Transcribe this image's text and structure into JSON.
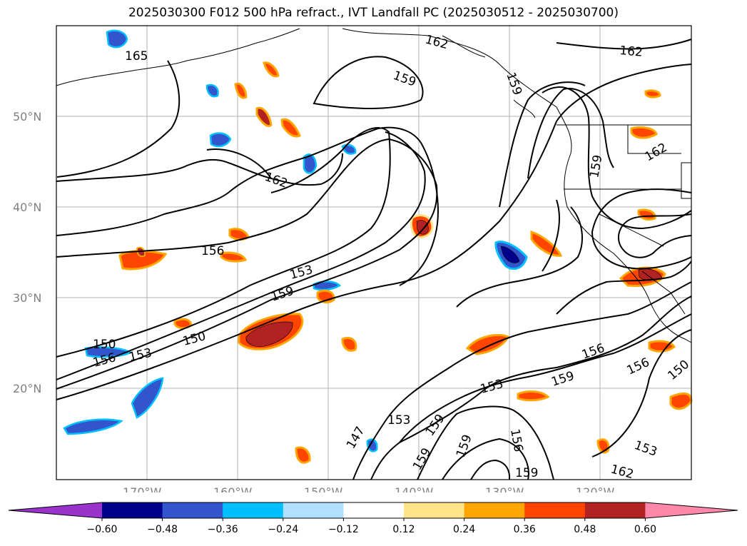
{
  "title": "2025030300 F012 500 hPa refract., IVT Landfall PC (2025030512 - 2025030700)",
  "lat_labels": [
    "50°N",
    "40°N",
    "30°N",
    "20°N"
  ],
  "lon_labels": [
    "170°W",
    "160°W",
    "150°W",
    "140°W",
    "130°W",
    "120°W"
  ],
  "contour_labels": [
    {
      "text": "165"
    },
    {
      "text": "162"
    },
    {
      "text": "159"
    },
    {
      "text": "162"
    },
    {
      "text": "159"
    },
    {
      "text": "162"
    },
    {
      "text": "156"
    },
    {
      "text": "153"
    },
    {
      "text": "159"
    },
    {
      "text": "150"
    },
    {
      "text": "150"
    },
    {
      "text": "156"
    },
    {
      "text": "153"
    },
    {
      "text": "153"
    },
    {
      "text": "153"
    },
    {
      "text": "159"
    },
    {
      "text": "156"
    },
    {
      "text": "150"
    },
    {
      "text": "147"
    },
    {
      "text": "156"
    },
    {
      "text": "159"
    },
    {
      "text": "159"
    },
    {
      "text": "156"
    },
    {
      "text": "159"
    },
    {
      "text": "153"
    },
    {
      "text": "162"
    },
    {
      "text": "159"
    },
    {
      "text": "159"
    },
    {
      "text": "162"
    }
  ],
  "colorbar": {
    "ticks": [
      "−0.60",
      "−0.48",
      "−0.36",
      "−0.24",
      "−0.12",
      "0.12",
      "0.24",
      "0.36",
      "0.48",
      "0.60"
    ],
    "colors": [
      "#9933cc",
      "#00008b",
      "#3355cc",
      "#00bfff",
      "#b0e0ff",
      "#ffffff",
      "#ffe48a",
      "#ffa500",
      "#ff4500",
      "#b22222",
      "#ff88aa"
    ]
  }
}
